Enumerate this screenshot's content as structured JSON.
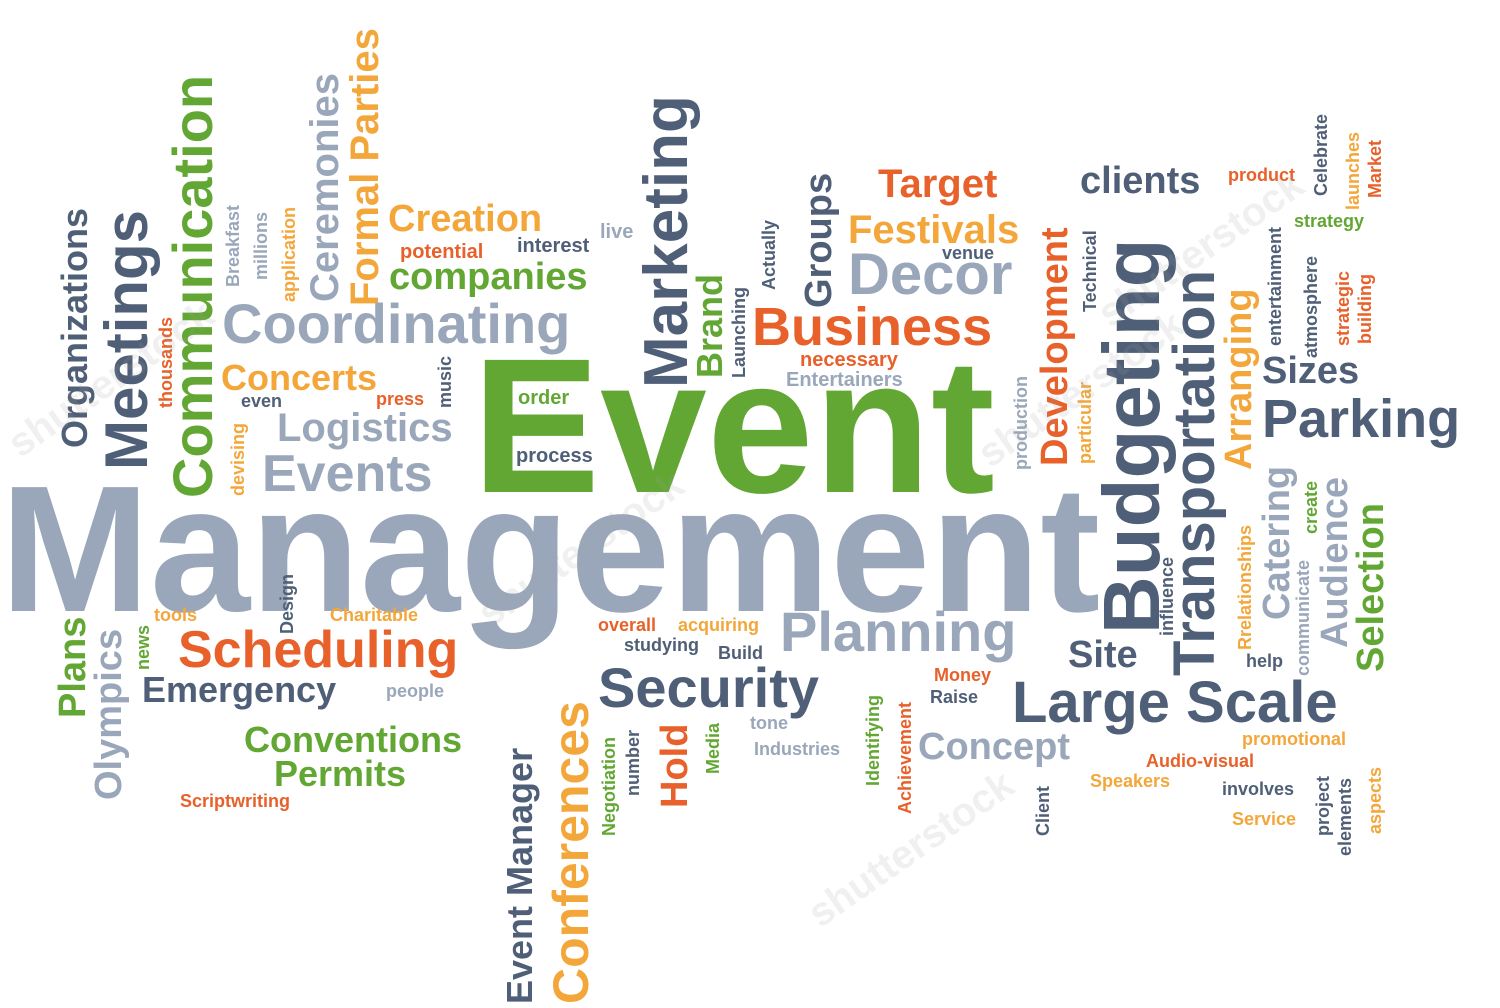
{
  "colors": {
    "slate": "#4f5f77",
    "steel": "#9aa7ba",
    "green": "#62a733",
    "orange": "#e8602a",
    "gold": "#f3a73b"
  },
  "words": [
    {
      "text": "Management",
      "color": "#9aa7ba"
    },
    {
      "text": "Event",
      "color": "#62a733"
    },
    {
      "text": "Communication",
      "color": "#62a733"
    },
    {
      "text": "Meetings",
      "color": "#4f5f77"
    },
    {
      "text": "Organizations",
      "color": "#4f5f77"
    },
    {
      "text": "thousands",
      "color": "#e8602a"
    },
    {
      "text": "Breakfast",
      "color": "#9aa7ba"
    },
    {
      "text": "millions",
      "color": "#9aa7ba"
    },
    {
      "text": "application",
      "color": "#f3a73b"
    },
    {
      "text": "Ceremonies",
      "color": "#9aa7ba"
    },
    {
      "text": "Formal Parties",
      "color": "#f3a73b"
    },
    {
      "text": "Creation",
      "color": "#f3a73b"
    },
    {
      "text": "live",
      "color": "#9aa7ba"
    },
    {
      "text": "potential",
      "color": "#e8602a"
    },
    {
      "text": "interest",
      "color": "#4f5f77"
    },
    {
      "text": "companies",
      "color": "#62a733"
    },
    {
      "text": "Coordinating",
      "color": "#9aa7ba"
    },
    {
      "text": "Concerts",
      "color": "#f3a73b"
    },
    {
      "text": "music",
      "color": "#4f5f77"
    },
    {
      "text": "even",
      "color": "#4f5f77"
    },
    {
      "text": "press",
      "color": "#e8602a"
    },
    {
      "text": "order",
      "color": "#62a733"
    },
    {
      "text": "devising",
      "color": "#f3a73b"
    },
    {
      "text": "Logistics",
      "color": "#9aa7ba"
    },
    {
      "text": "Events",
      "color": "#9aa7ba"
    },
    {
      "text": "process",
      "color": "#4f5f77"
    },
    {
      "text": "Marketing",
      "color": "#4f5f77"
    },
    {
      "text": "Brand",
      "color": "#62a733"
    },
    {
      "text": "Launching",
      "color": "#4f5f77"
    },
    {
      "text": "Actually",
      "color": "#4f5f77"
    },
    {
      "text": "Groups",
      "color": "#4f5f77"
    },
    {
      "text": "Target",
      "color": "#e8602a"
    },
    {
      "text": "Festivals",
      "color": "#f3a73b"
    },
    {
      "text": "venue",
      "color": "#4f5f77"
    },
    {
      "text": "Decor",
      "color": "#9aa7ba"
    },
    {
      "text": "Business",
      "color": "#e8602a"
    },
    {
      "text": "necessary",
      "color": "#e8602a"
    },
    {
      "text": "Entertainers",
      "color": "#9aa7ba"
    },
    {
      "text": "production",
      "color": "#9aa7ba"
    },
    {
      "text": "Development",
      "color": "#e8602a"
    },
    {
      "text": "particular",
      "color": "#f3a73b"
    },
    {
      "text": "Technical",
      "color": "#4f5f77"
    },
    {
      "text": "clients",
      "color": "#4f5f77"
    },
    {
      "text": "product",
      "color": "#e8602a"
    },
    {
      "text": "Celebrate",
      "color": "#4f5f77"
    },
    {
      "text": "launches",
      "color": "#f3a73b"
    },
    {
      "text": "Market",
      "color": "#e8602a"
    },
    {
      "text": "strategy",
      "color": "#62a733"
    },
    {
      "text": "entertainment",
      "color": "#4f5f77"
    },
    {
      "text": "atmosphere",
      "color": "#4f5f77"
    },
    {
      "text": "strategic",
      "color": "#e8602a"
    },
    {
      "text": "building",
      "color": "#e8602a"
    },
    {
      "text": "Budgeting",
      "color": "#4f5f77"
    },
    {
      "text": "Transportation",
      "color": "#4f5f77"
    },
    {
      "text": "Arranging",
      "color": "#f3a73b"
    },
    {
      "text": "Sizes",
      "color": "#4f5f77"
    },
    {
      "text": "Parking",
      "color": "#4f5f77"
    },
    {
      "text": "Catering",
      "color": "#9aa7ba"
    },
    {
      "text": "create",
      "color": "#62a733"
    },
    {
      "text": "Audience",
      "color": "#9aa7ba"
    },
    {
      "text": "Selection",
      "color": "#62a733"
    },
    {
      "text": "Rrelationships",
      "color": "#f3a73b"
    },
    {
      "text": "communicate",
      "color": "#9aa7ba"
    },
    {
      "text": "help",
      "color": "#4f5f77"
    },
    {
      "text": "influence",
      "color": "#4f5f77"
    },
    {
      "text": "Site",
      "color": "#4f5f77"
    },
    {
      "text": "Large Scale",
      "color": "#4f5f77"
    },
    {
      "text": "Plans",
      "color": "#62a733"
    },
    {
      "text": "Olympics",
      "color": "#9aa7ba"
    },
    {
      "text": "news",
      "color": "#62a733"
    },
    {
      "text": "tools",
      "color": "#f3a73b"
    },
    {
      "text": "Design",
      "color": "#4f5f77"
    },
    {
      "text": "Charitable",
      "color": "#f3a73b"
    },
    {
      "text": "Scheduling",
      "color": "#e8602a"
    },
    {
      "text": "Emergency",
      "color": "#4f5f77"
    },
    {
      "text": "people",
      "color": "#9aa7ba"
    },
    {
      "text": "Conventions",
      "color": "#62a733"
    },
    {
      "text": "Permits",
      "color": "#62a733"
    },
    {
      "text": "Scriptwriting",
      "color": "#e8602a"
    },
    {
      "text": "Event Manager",
      "color": "#4f5f77"
    },
    {
      "text": "Conferences",
      "color": "#f3a73b"
    },
    {
      "text": "overall",
      "color": "#e8602a"
    },
    {
      "text": "acquiring",
      "color": "#f3a73b"
    },
    {
      "text": "studying",
      "color": "#4f5f77"
    },
    {
      "text": "Build",
      "color": "#4f5f77"
    },
    {
      "text": "Planning",
      "color": "#9aa7ba"
    },
    {
      "text": "Security",
      "color": "#4f5f77"
    },
    {
      "text": "Negotiation",
      "color": "#62a733"
    },
    {
      "text": "number",
      "color": "#4f5f77"
    },
    {
      "text": "Hold",
      "color": "#e8602a"
    },
    {
      "text": "Media",
      "color": "#62a733"
    },
    {
      "text": "tone",
      "color": "#9aa7ba"
    },
    {
      "text": "Industries",
      "color": "#9aa7ba"
    },
    {
      "text": "Identifying",
      "color": "#62a733"
    },
    {
      "text": "Achievement",
      "color": "#e8602a"
    },
    {
      "text": "Money",
      "color": "#e8602a"
    },
    {
      "text": "Raise",
      "color": "#4f5f77"
    },
    {
      "text": "Concept",
      "color": "#9aa7ba"
    },
    {
      "text": "Client",
      "color": "#4f5f77"
    },
    {
      "text": "promotional",
      "color": "#f3a73b"
    },
    {
      "text": "Audio-visual",
      "color": "#e8602a"
    },
    {
      "text": "Speakers",
      "color": "#f3a73b"
    },
    {
      "text": "involves",
      "color": "#4f5f77"
    },
    {
      "text": "Service",
      "color": "#f3a73b"
    },
    {
      "text": "project",
      "color": "#4f5f77"
    },
    {
      "text": "elements",
      "color": "#4f5f77"
    },
    {
      "text": "aspects",
      "color": "#f3a73b"
    }
  ],
  "watermark": {
    "text": "shutterstock"
  }
}
